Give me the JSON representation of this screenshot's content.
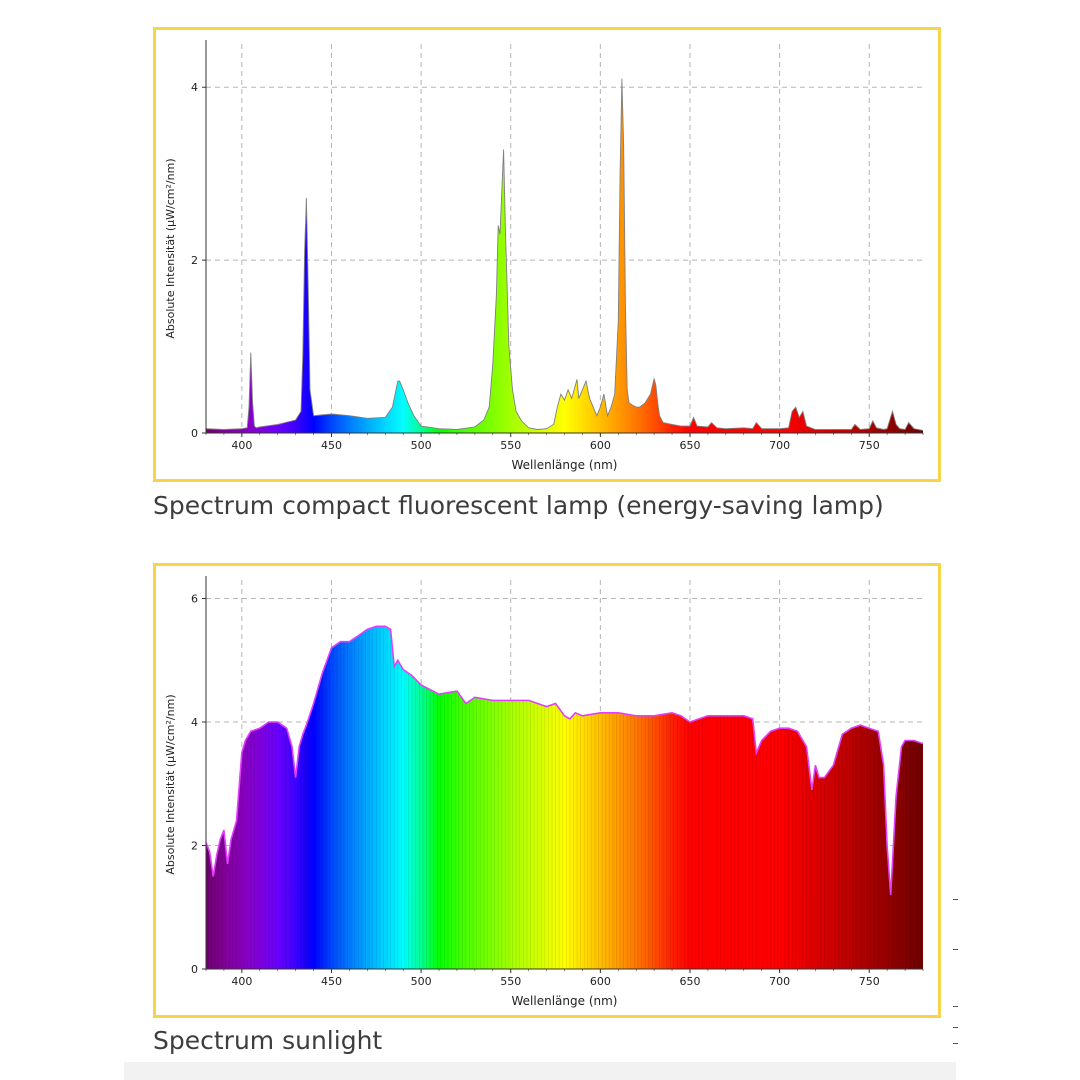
{
  "colors": {
    "frame": "#f7d54a",
    "grid": "#b5b5b5",
    "axis": "#333333",
    "caption": "#3d3d3d",
    "outline_lamp": "#808080",
    "outline_sun": "#e040fb"
  },
  "chart_data": [
    {
      "type": "area",
      "caption": "Spectrum compact fluorescent lamp (energy-saving lamp)",
      "xlabel": "Wellenlänge (nm)",
      "ylabel": "Absolute Intensität (µW/cm²/nm)",
      "xlim": [
        380,
        780
      ],
      "ylim": [
        0,
        4.5
      ],
      "xticks": [
        400,
        450,
        500,
        550,
        600,
        650,
        700,
        750
      ],
      "yticks": [
        0,
        2,
        4
      ],
      "xtick_labels": [
        "400",
        "450",
        "500",
        "550",
        "600",
        "650",
        "700",
        "750"
      ],
      "ytick_labels": [
        "0",
        "2",
        "4"
      ],
      "grid": true,
      "fill": "wavelength-colored spectrum",
      "series": [
        {
          "x": [
            380,
            390,
            400,
            403,
            404,
            405,
            406,
            407,
            408,
            410,
            420,
            430,
            433,
            434,
            435,
            436,
            437,
            438,
            440,
            450,
            460,
            470,
            480,
            484,
            486,
            487,
            488,
            490,
            493,
            496,
            500,
            510,
            520,
            530,
            535,
            538,
            540,
            542,
            543,
            544,
            545,
            546,
            547,
            549,
            551,
            553,
            556,
            560,
            565,
            570,
            574,
            576,
            578,
            580,
            582,
            584,
            586,
            587,
            588,
            590,
            592,
            594,
            596,
            598,
            600,
            602,
            604,
            606,
            608,
            610,
            611,
            612,
            613,
            614,
            615,
            616,
            618,
            620,
            622,
            625,
            628,
            630,
            631,
            632,
            633,
            635,
            640,
            645,
            650,
            652,
            654,
            660,
            662,
            665,
            670,
            680,
            685,
            687,
            690,
            700,
            705,
            707,
            709,
            711,
            713,
            715,
            720,
            730,
            740,
            742,
            745,
            750,
            752,
            754,
            758,
            760,
            763,
            765,
            767,
            770,
            772,
            775,
            780
          ],
          "y": [
            0.05,
            0.04,
            0.05,
            0.06,
            0.3,
            0.93,
            0.35,
            0.08,
            0.06,
            0.07,
            0.1,
            0.15,
            0.25,
            0.9,
            2.1,
            2.72,
            1.7,
            0.5,
            0.2,
            0.22,
            0.2,
            0.17,
            0.18,
            0.3,
            0.5,
            0.6,
            0.6,
            0.5,
            0.33,
            0.2,
            0.08,
            0.05,
            0.04,
            0.07,
            0.15,
            0.3,
            0.8,
            1.6,
            2.4,
            2.3,
            2.8,
            3.28,
            2.4,
            1.0,
            0.5,
            0.25,
            0.14,
            0.06,
            0.04,
            0.05,
            0.1,
            0.3,
            0.45,
            0.38,
            0.5,
            0.4,
            0.55,
            0.62,
            0.4,
            0.5,
            0.6,
            0.4,
            0.3,
            0.2,
            0.3,
            0.45,
            0.2,
            0.3,
            0.45,
            1.3,
            3.0,
            4.1,
            3.3,
            1.5,
            0.5,
            0.35,
            0.32,
            0.3,
            0.3,
            0.35,
            0.45,
            0.63,
            0.55,
            0.35,
            0.2,
            0.12,
            0.1,
            0.08,
            0.08,
            0.18,
            0.08,
            0.07,
            0.12,
            0.06,
            0.05,
            0.06,
            0.05,
            0.12,
            0.05,
            0.05,
            0.06,
            0.25,
            0.3,
            0.18,
            0.25,
            0.08,
            0.04,
            0.04,
            0.04,
            0.1,
            0.04,
            0.05,
            0.14,
            0.06,
            0.04,
            0.05,
            0.25,
            0.1,
            0.05,
            0.04,
            0.12,
            0.05,
            0.03
          ]
        }
      ]
    },
    {
      "type": "area",
      "caption": "Spectrum sunlight",
      "xlabel": "Wellenlänge (nm)",
      "ylabel": "Absolute Intensität (µW/cm²/nm)",
      "xlim": [
        380,
        780
      ],
      "ylim": [
        0,
        6.3
      ],
      "xticks": [
        400,
        450,
        500,
        550,
        600,
        650,
        700,
        750
      ],
      "yticks": [
        0,
        2,
        4,
        6
      ],
      "xtick_labels": [
        "400",
        "450",
        "500",
        "550",
        "600",
        "650",
        "700",
        "750"
      ],
      "ytick_labels": [
        "0",
        "2",
        "4",
        "6"
      ],
      "grid": true,
      "fill": "wavelength-colored spectrum",
      "series": [
        {
          "x": [
            380,
            382,
            384,
            386,
            388,
            390,
            392,
            394,
            397,
            400,
            402,
            405,
            410,
            415,
            420,
            425,
            428,
            430,
            432,
            434,
            436,
            440,
            445,
            450,
            455,
            460,
            465,
            470,
            475,
            480,
            483,
            485,
            487,
            490,
            495,
            500,
            510,
            520,
            525,
            530,
            540,
            550,
            560,
            570,
            575,
            580,
            583,
            586,
            590,
            600,
            610,
            620,
            630,
            640,
            645,
            650,
            655,
            660,
            670,
            680,
            685,
            687,
            690,
            695,
            700,
            705,
            710,
            715,
            718,
            720,
            722,
            725,
            730,
            735,
            740,
            745,
            750,
            755,
            758,
            760,
            762,
            765,
            768,
            770,
            775,
            780
          ],
          "y": [
            2.05,
            1.9,
            1.5,
            1.85,
            2.1,
            2.25,
            1.7,
            2.1,
            2.4,
            3.5,
            3.7,
            3.85,
            3.9,
            4.0,
            4.0,
            3.9,
            3.6,
            3.1,
            3.6,
            3.8,
            3.95,
            4.3,
            4.8,
            5.2,
            5.3,
            5.3,
            5.4,
            5.5,
            5.55,
            5.55,
            5.5,
            4.9,
            5.0,
            4.85,
            4.75,
            4.6,
            4.45,
            4.5,
            4.3,
            4.4,
            4.35,
            4.35,
            4.35,
            4.25,
            4.3,
            4.1,
            4.05,
            4.15,
            4.1,
            4.15,
            4.15,
            4.1,
            4.1,
            4.15,
            4.1,
            4.0,
            4.05,
            4.1,
            4.1,
            4.1,
            4.05,
            3.5,
            3.7,
            3.85,
            3.9,
            3.9,
            3.85,
            3.6,
            2.9,
            3.3,
            3.1,
            3.1,
            3.3,
            3.8,
            3.9,
            3.95,
            3.9,
            3.85,
            3.3,
            2.0,
            1.2,
            2.8,
            3.6,
            3.7,
            3.7,
            3.65
          ]
        }
      ]
    }
  ]
}
